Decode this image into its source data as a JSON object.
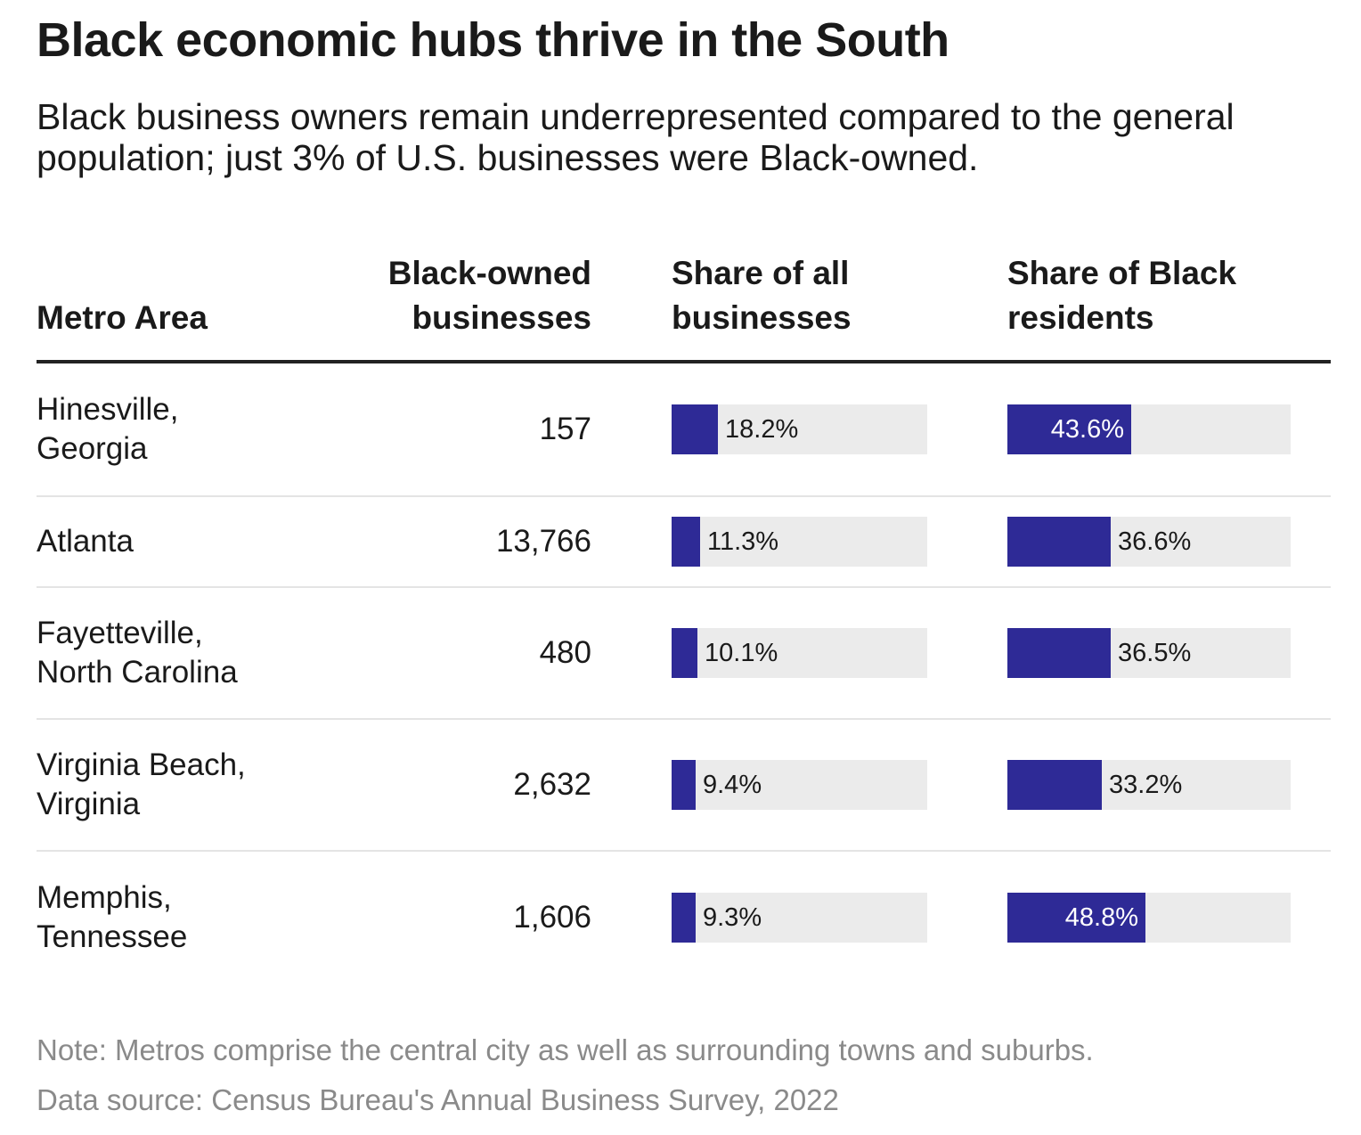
{
  "chart_data": {
    "type": "table",
    "title": "Black economic hubs thrive in the South",
    "subtitle": "Black business owners remain underrepresented compared to the general population; just 3% of U.S. businesses were Black-owned.",
    "columns": {
      "metro": "Metro Area",
      "count": "Black-owned businesses",
      "share_all": "Share of all businesses",
      "share_black": "Share of Black residents"
    },
    "bar_scale_max": 100,
    "bar_color": "#2e2a96",
    "track_color": "#ebebeb",
    "rows": [
      {
        "metro": [
          "Hinesville,",
          "Georgia"
        ],
        "count": "157",
        "share_all": 18.2,
        "share_all_label": "18.2%",
        "share_black": 43.6,
        "share_black_label": "43.6%"
      },
      {
        "metro": [
          "Atlanta"
        ],
        "count": "13,766",
        "share_all": 11.3,
        "share_all_label": "11.3%",
        "share_black": 36.6,
        "share_black_label": "36.6%"
      },
      {
        "metro": [
          "Fayetteville,",
          "North Carolina"
        ],
        "count": "480",
        "share_all": 10.1,
        "share_all_label": "10.1%",
        "share_black": 36.5,
        "share_black_label": "36.5%"
      },
      {
        "metro": [
          "Virginia Beach,",
          "Virginia"
        ],
        "count": "2,632",
        "share_all": 9.4,
        "share_all_label": "9.4%",
        "share_black": 33.2,
        "share_black_label": "33.2%"
      },
      {
        "metro": [
          "Memphis,",
          "Tennessee"
        ],
        "count": "1,606",
        "share_all": 9.3,
        "share_all_label": "9.3%",
        "share_black": 48.8,
        "share_black_label": "48.8%"
      }
    ],
    "note": "Note: Metros comprise the central city as well as surrounding towns and suburbs.",
    "source": "Data source: Census Bureau's Annual Business Survey, 2022"
  }
}
